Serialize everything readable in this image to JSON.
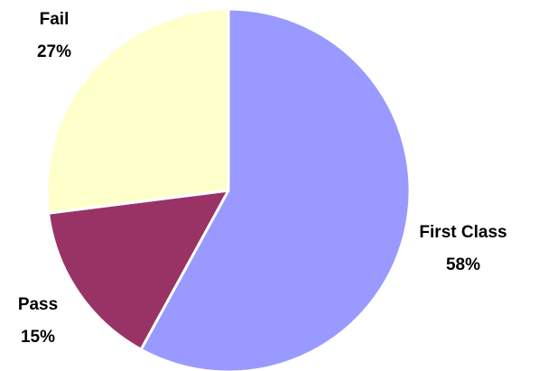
{
  "chart_data": {
    "type": "pie",
    "title": "",
    "start_angle_deg": 0,
    "direction": "clockwise",
    "legend": "none",
    "slices": [
      {
        "name": "First Class",
        "value": 58,
        "label": "58%",
        "color": "#9999ff"
      },
      {
        "name": "Pass",
        "value": 15,
        "label": "15%",
        "color": "#993366"
      },
      {
        "name": "Fail",
        "value": 27,
        "label": "27%",
        "color": "#ffffcc"
      }
    ]
  }
}
